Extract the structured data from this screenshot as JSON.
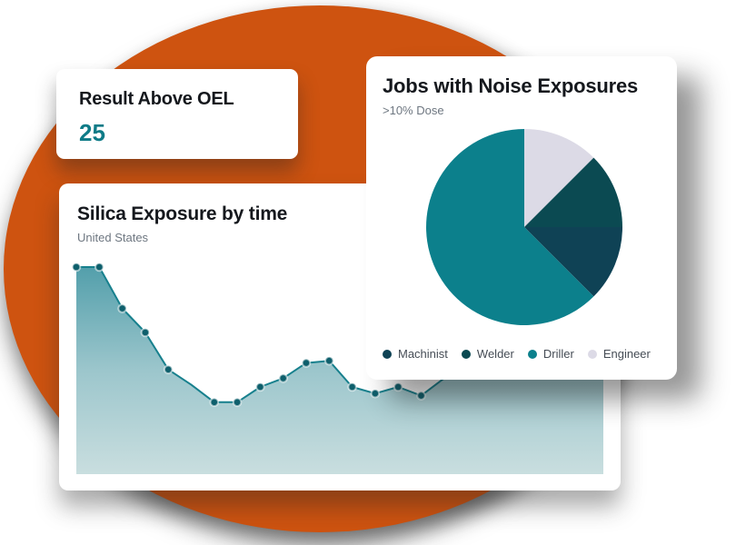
{
  "background": {
    "circle_color": "#ce5310",
    "page_color": "#ffffff"
  },
  "stat_card": {
    "title": "Result Above OEL",
    "value": "25",
    "value_color": "#0e7b87"
  },
  "line_card": {
    "title": "Silica Exposure by time",
    "subtitle": "United States"
  },
  "pie_card": {
    "title": "Jobs with Noise Exposures",
    "subtitle": ">10% Dose"
  },
  "chart_data": [
    {
      "type": "area",
      "title": "Silica Exposure by time",
      "region_label": "United States",
      "xlabel": "",
      "ylabel": "",
      "axis_labels_visible": false,
      "grid": false,
      "x": [
        1,
        2,
        3,
        4,
        5,
        6,
        7,
        8,
        9,
        10,
        11,
        12,
        13,
        14,
        15,
        16,
        17
      ],
      "values": [
        95,
        95,
        76,
        65,
        48,
        41,
        33,
        33,
        40,
        44,
        51,
        52,
        40,
        37,
        40,
        36,
        44
      ],
      "value_unit": "relative-percent-estimated (no axis ticks shown)",
      "ylim": [
        0,
        100
      ],
      "no_marker_indices": [
        5,
        16
      ],
      "line_color": "#17808d",
      "dot_color": "#0e5f6c",
      "dot_halo_color": "rgba(255,255,255,0.55)",
      "fill_gradient": [
        "#539fab",
        "#9cc6cc",
        "#c9dedf"
      ]
    },
    {
      "type": "pie",
      "title": "Jobs with Noise Exposures",
      "subtitle": ">10% Dose",
      "start_angle_deg_from_top_clockwise": 0,
      "slices": [
        {
          "label": "Engineer",
          "value_pct": 12.5,
          "color": "#dcdae6"
        },
        {
          "label": "Welder",
          "value_pct": 12.5,
          "color": "#0b4a52"
        },
        {
          "label": "Machinist",
          "value_pct": 12.5,
          "color": "#0f4255"
        },
        {
          "label": "Driller",
          "value_pct": 62.5,
          "color": "#0c808c"
        }
      ],
      "legend_order": [
        "Machinist",
        "Welder",
        "Driller",
        "Engineer"
      ],
      "legend_position": "bottom"
    }
  ]
}
